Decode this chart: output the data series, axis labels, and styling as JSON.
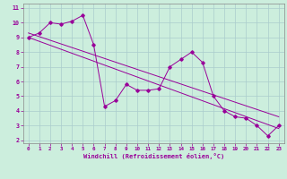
{
  "x": [
    0,
    1,
    2,
    3,
    4,
    5,
    6,
    7,
    8,
    9,
    10,
    11,
    12,
    13,
    14,
    15,
    16,
    17,
    18,
    19,
    20,
    21,
    22,
    23
  ],
  "y_main": [
    9,
    9.3,
    10,
    9.9,
    10.1,
    10.5,
    8.5,
    4.3,
    4.7,
    5.8,
    5.4,
    5.4,
    5.5,
    7.0,
    7.5,
    8.0,
    7.3,
    5.0,
    4.0,
    3.6,
    3.5,
    3.0,
    2.3,
    3.0
  ],
  "y_upper_start": 9.3,
  "y_upper_end": 3.6,
  "y_lower_start": 9.0,
  "y_lower_end": 2.8,
  "color": "#990099",
  "bg_color": "#cceedd",
  "grid_color": "#aacccc",
  "xlabel": "Windchill (Refroidissement éolien,°C)",
  "xlim": [
    -0.5,
    23.5
  ],
  "ylim": [
    1.8,
    11.3
  ],
  "yticks": [
    2,
    3,
    4,
    5,
    6,
    7,
    8,
    9,
    10,
    11
  ],
  "xticks": [
    0,
    1,
    2,
    3,
    4,
    5,
    6,
    7,
    8,
    9,
    10,
    11,
    12,
    13,
    14,
    15,
    16,
    17,
    18,
    19,
    20,
    21,
    22,
    23
  ]
}
